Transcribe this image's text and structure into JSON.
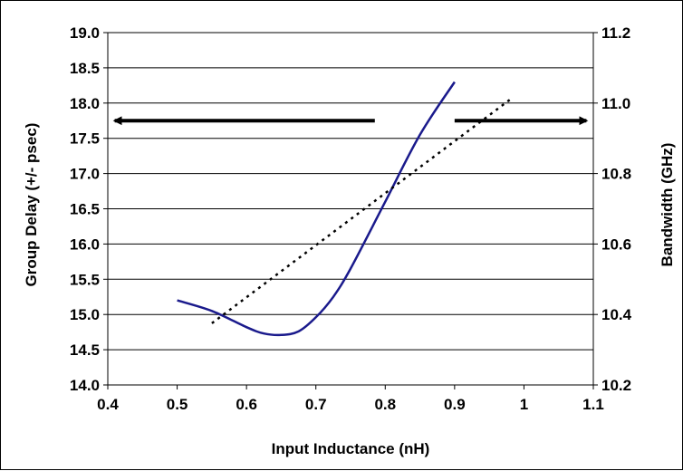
{
  "chart_data": {
    "type": "line",
    "xlabel": "Input Inductance (nH)",
    "ylabel": "Group Delay (+/- psec)",
    "y2label": "Bandwidth (GHz)",
    "xlim": [
      0.4,
      1.1
    ],
    "ylim": [
      14.0,
      19.0
    ],
    "y2lim": [
      10.2,
      11.2
    ],
    "x_ticks": [
      "0.4",
      "0.5",
      "0.6",
      "0.7",
      "0.8",
      "0.9",
      "1",
      "1.1"
    ],
    "y_ticks": [
      "14.0",
      "14.5",
      "15.0",
      "15.5",
      "16.0",
      "16.5",
      "17.0",
      "17.5",
      "18.0",
      "18.5",
      "19.0"
    ],
    "y2_ticks": [
      "10.2",
      "10.4",
      "10.6",
      "10.8",
      "11.0",
      "11.2"
    ],
    "grid": "horizontal",
    "series": [
      {
        "axis": "left",
        "style": "solid",
        "color": "#1a1a8c",
        "x": [
          0.5,
          0.55,
          0.6,
          0.625,
          0.65,
          0.675,
          0.7,
          0.725,
          0.75,
          0.8,
          0.85,
          0.9
        ],
        "y": [
          15.2,
          15.05,
          14.82,
          14.73,
          14.71,
          14.76,
          14.96,
          15.25,
          15.65,
          16.6,
          17.55,
          18.3
        ]
      },
      {
        "axis": "right",
        "style": "dotted",
        "color": "#000000",
        "x": [
          0.55,
          0.98
        ],
        "y": [
          10.375,
          11.01
        ]
      }
    ],
    "annotations": [
      {
        "type": "arrow",
        "direction": "left",
        "points_to": "left-axis",
        "x_from": 0.785,
        "x_to": 0.41,
        "y": 17.75
      },
      {
        "type": "arrow",
        "direction": "right",
        "points_to": "right-axis",
        "x_from": 0.9,
        "x_to": 1.09,
        "y": 17.75
      }
    ]
  }
}
